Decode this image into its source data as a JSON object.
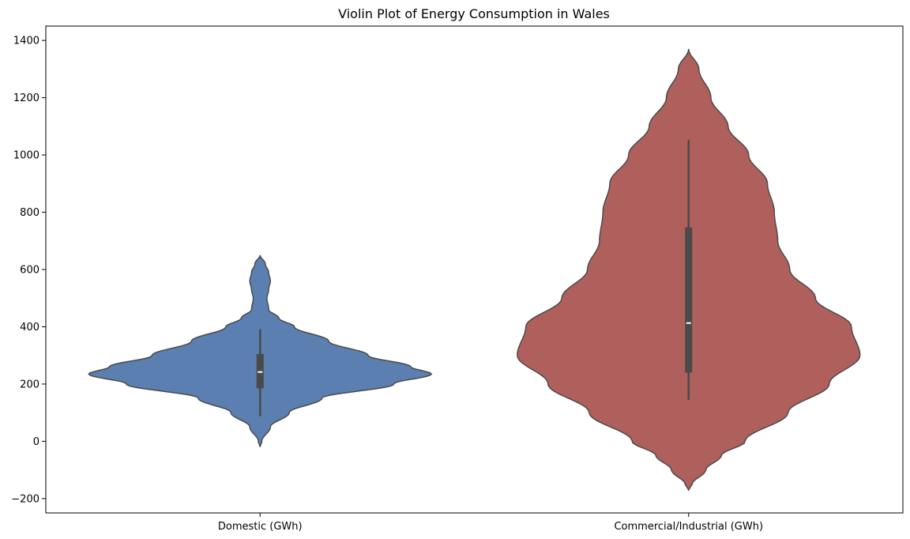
{
  "chart_data": {
    "type": "violin",
    "title": "Violin Plot of Energy Consumption in Wales",
    "xlabel": "",
    "ylabel": "",
    "ylim": [
      -250,
      1450
    ],
    "yticks": [
      -200,
      0,
      200,
      400,
      600,
      800,
      1000,
      1200,
      1400
    ],
    "grid": false,
    "categories": [
      "Domestic (GWh)",
      "Commercial/Industrial (GWh)"
    ],
    "series": [
      {
        "color": "#5a7fb0",
        "kde_range": [
          -20,
          650
        ],
        "box": {
          "whisker_low": 88,
          "q1": 185,
          "median": 242,
          "q3": 305,
          "whisker_high": 392
        },
        "density_profile": [
          [
            -20,
            0.0
          ],
          [
            0,
            0.01
          ],
          [
            50,
            0.06
          ],
          [
            100,
            0.17
          ],
          [
            150,
            0.36
          ],
          [
            200,
            0.78
          ],
          [
            235,
            1.0
          ],
          [
            260,
            0.88
          ],
          [
            300,
            0.63
          ],
          [
            350,
            0.4
          ],
          [
            400,
            0.2
          ],
          [
            430,
            0.11
          ],
          [
            460,
            0.05
          ],
          [
            500,
            0.04
          ],
          [
            530,
            0.05
          ],
          [
            560,
            0.06
          ],
          [
            590,
            0.05
          ],
          [
            620,
            0.03
          ],
          [
            650,
            0.0
          ]
        ]
      },
      {
        "color": "#b0605c",
        "kde_range": [
          -170,
          1370
        ],
        "box": {
          "whisker_low": 145,
          "q1": 240,
          "median": 413,
          "q3": 747,
          "whisker_high": 1053
        },
        "density_profile": [
          [
            -170,
            0.0
          ],
          [
            -150,
            0.02
          ],
          [
            -100,
            0.1
          ],
          [
            -50,
            0.19
          ],
          [
            0,
            0.33
          ],
          [
            100,
            0.58
          ],
          [
            200,
            0.82
          ],
          [
            300,
            1.0
          ],
          [
            400,
            0.95
          ],
          [
            500,
            0.74
          ],
          [
            600,
            0.59
          ],
          [
            700,
            0.52
          ],
          [
            800,
            0.5
          ],
          [
            900,
            0.46
          ],
          [
            1000,
            0.35
          ],
          [
            1100,
            0.23
          ],
          [
            1200,
            0.13
          ],
          [
            1300,
            0.06
          ],
          [
            1370,
            0.0
          ]
        ]
      }
    ]
  }
}
